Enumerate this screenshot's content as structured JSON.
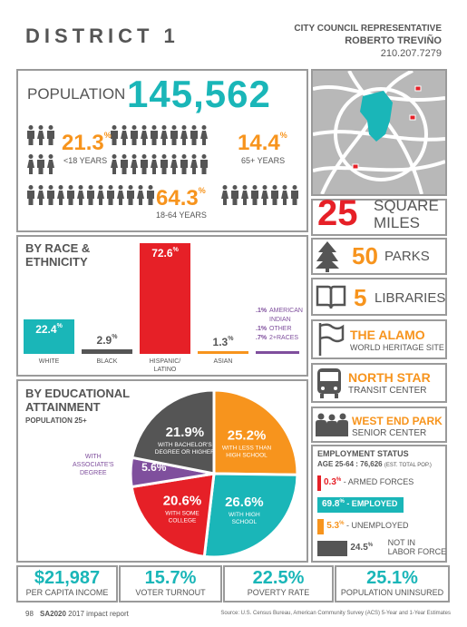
{
  "header": {
    "district": "DISTRICT 1",
    "rep_title": "CITY COUNCIL REPRESENTATIVE",
    "rep_name": "ROBERTO TREVIÑO",
    "phone": "210.207.7279"
  },
  "population": {
    "label": "POPULATION",
    "value": "145,562",
    "under18_pct": "21.3",
    "under18_label": "<18 YEARS",
    "over65_pct": "14.4",
    "over65_label": "65+ YEARS",
    "adult_pct": "64.3",
    "adult_label": "18-64 YEARS"
  },
  "area": {
    "value": "25",
    "unit1": "SQUARE",
    "unit2": "MILES"
  },
  "race": {
    "title1": "BY RACE &",
    "title2": "ETHNICITY",
    "pct": "%",
    "bars": [
      {
        "value": "22.4",
        "label": "WHITE",
        "color": "#1ab6b8"
      },
      {
        "value": "2.9",
        "label": "BLACK",
        "color": "#555555"
      },
      {
        "value": "72.6",
        "label": "HISPANIC/",
        "label2": "LATINO",
        "color": "#e62027"
      },
      {
        "value": "1.3",
        "label": "ASIAN",
        "color": "#f7941d"
      }
    ],
    "others": [
      {
        "value": ".1%",
        "label": "AMERICAN"
      },
      {
        "value": "",
        "label": "INDIAN"
      },
      {
        "value": ".1%",
        "label": "OTHER"
      },
      {
        "value": ".7%",
        "label": "2+RACES"
      }
    ]
  },
  "amenities": {
    "parks_n": "50",
    "parks": "PARKS",
    "libraries_n": "5",
    "libraries": "LIBRARIES",
    "alamo": "THE ALAMO",
    "alamo_sub": "WORLD HERITAGE SITE",
    "northstar": "NORTH STAR",
    "northstar_sub": "TRANSIT CENTER",
    "westend": "WEST END PARK",
    "westend_sub": "SENIOR CENTER"
  },
  "education": {
    "title1": "BY EDUCATIONAL",
    "title2": "ATTAINMENT",
    "subtitle": "POPULATION 25+",
    "assoc_callout1": "WITH",
    "assoc_callout2": "ASSOCIATE'S",
    "assoc_callout3": "DEGREE"
  },
  "chart_data": {
    "type": "pie",
    "slices": [
      {
        "label": "WITH LESS THAN HIGH SCHOOL",
        "value": 25.2,
        "color": "#f7941d",
        "l1": "WITH LESS THAN",
        "l2": "HIGH SCHOOL"
      },
      {
        "label": "WITH HIGH SCHOOL",
        "value": 26.6,
        "color": "#1ab6b8",
        "l1": "WITH HIGH",
        "l2": "SCHOOL"
      },
      {
        "label": "WITH SOME COLLEGE",
        "value": 20.6,
        "color": "#e62027",
        "l1": "WITH SOME",
        "l2": "COLLEGE"
      },
      {
        "label": "WITH ASSOCIATE'S DEGREE",
        "value": 5.6,
        "color": "#7f4f9d",
        "l1": "",
        "l2": ""
      },
      {
        "label": "WITH BACHELOR'S DEGREE OR HIGHER",
        "value": 21.9,
        "color": "#555555",
        "l1": "WITH BACHELOR'S",
        "l2": "DEGREE OR HIGHER"
      }
    ]
  },
  "employment": {
    "title": "EMPLOYMENT STATUS",
    "subtitle": "AGE 25-64 : 76,626",
    "subtitle_note": "(EST. TOTAL POP.)",
    "rows": [
      {
        "value": "0.3",
        "label": "- ARMED FORCES",
        "color": "#e62027",
        "fraction": 0.003
      },
      {
        "value": "69.8",
        "label": "- EMPLOYED",
        "color": "#1ab6b8",
        "fraction": 0.698
      },
      {
        "value": "5.3",
        "label": "- UNEMPLOYED",
        "color": "#f7941d",
        "fraction": 0.053
      },
      {
        "value": "24.5",
        "label": "NOT IN",
        "label2": "LABOR FORCE",
        "color": "#555555",
        "fraction": 0.245
      }
    ]
  },
  "stats": [
    {
      "value": "$21,987",
      "label": "PER CAPITA INCOME"
    },
    {
      "value": "15.7%",
      "label": "VOTER TURNOUT"
    },
    {
      "value": "22.5%",
      "label": "POVERTY RATE"
    },
    {
      "value": "25.1%",
      "label": "POPULATION UNINSURED"
    }
  ],
  "footer": {
    "page": "98",
    "report_bold": "SA2020",
    "report_rest": "2017 impact report",
    "source": "Source: U.S. Census Bureau, American Community Survey (ACS) 5-Year and 1-Year Estimates"
  }
}
